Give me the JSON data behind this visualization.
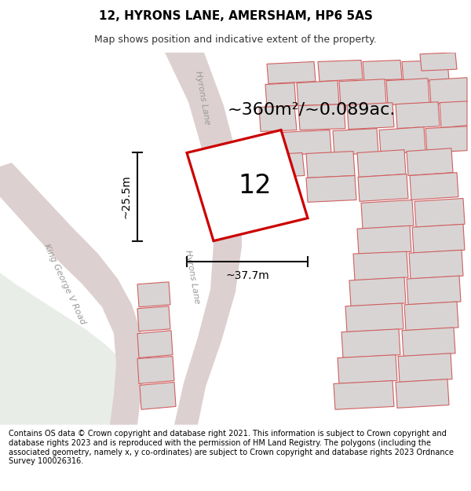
{
  "title": "12, HYRONS LANE, AMERSHAM, HP6 5AS",
  "subtitle": "Map shows position and indicative extent of the property.",
  "footer": "Contains OS data © Crown copyright and database right 2021. This information is subject to Crown copyright and database rights 2023 and is reproduced with the permission of HM Land Registry. The polygons (including the associated geometry, namely x, y co-ordinates) are subject to Crown copyright and database rights 2023 Ordnance Survey 100026316.",
  "area_label": "~360m²/~0.089ac.",
  "number_label": "12",
  "dim_width": "~37.7m",
  "dim_height": "~25.5m",
  "road_label_hyrons": "Hyrons Lane",
  "road_label_kgv": "King George V Road",
  "map_bg": "#f7f3f3",
  "green_color": "#e8ede8",
  "road_color": "#ddd0d0",
  "building_fc": "#d8d4d4",
  "building_ec": "#d06060",
  "plot_ec": "#cc0000",
  "plot_fc": "#ffffff",
  "dim_color": "#111111",
  "road_text_color": "#999999",
  "title_fontsize": 11,
  "subtitle_fontsize": 9,
  "footer_fontsize": 7,
  "area_fontsize": 16,
  "number_fontsize": 24,
  "dim_fontsize": 10,
  "road_fontsize": 8
}
